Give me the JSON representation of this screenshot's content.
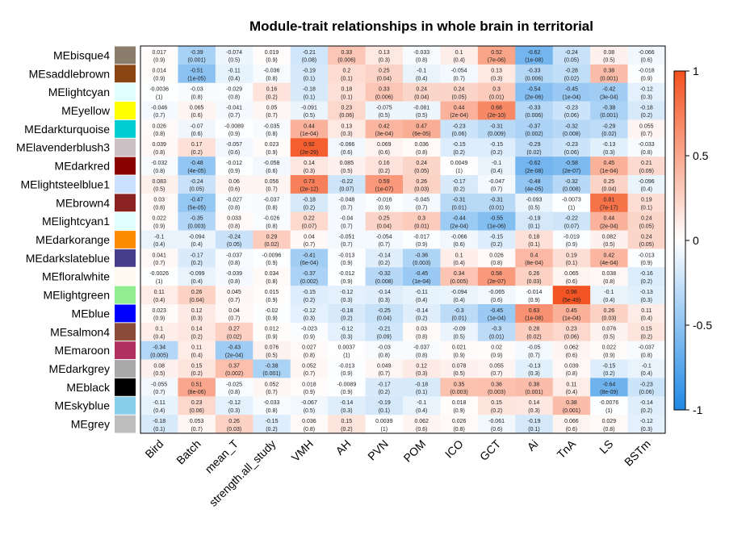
{
  "chart_data": {
    "type": "heatmap",
    "title": "Module-trait relationships in whole brain in territorial",
    "columns": [
      "Bird",
      "Batch",
      "mean_T",
      "strength.all_study",
      "VMH",
      "AH",
      "PVN",
      "POM",
      "ICO",
      "GCT",
      "Ai",
      "TnA",
      "LS",
      "BSTm"
    ],
    "rows": [
      {
        "name": "MEbisque4",
        "color": "#8B7D6B",
        "r": [
          0.017,
          -0.39,
          -0.074,
          0.019,
          -0.21,
          0.33,
          0.13,
          -0.033,
          0.1,
          0.52,
          -0.62,
          -0.24,
          0.08,
          -0.066
        ],
        "p": [
          "(0.9)",
          "(0.001)",
          "(0.5)",
          "(0.9)",
          "(0.08)",
          "(0.006)",
          "(0.3)",
          "(0.8)",
          "(0.4)",
          "(7e-06)",
          "(1e-08)",
          "(0.05)",
          "(0.5)",
          "(0.6)"
        ]
      },
      {
        "name": "MEsaddlebrown",
        "color": "#8B4513",
        "r": [
          0.014,
          -0.51,
          -0.11,
          -0.036,
          -0.19,
          0.2,
          0.25,
          -0.1,
          -0.054,
          0.13,
          -0.33,
          -0.28,
          0.38,
          -0.018
        ],
        "p": [
          "(0.9)",
          "(1e-05)",
          "(0.4)",
          "(0.8)",
          "(0.1)",
          "(0.1)",
          "(0.04)",
          "(0.4)",
          "(0.7)",
          "(0.3)",
          "(0.006)",
          "(0.02)",
          "(0.001)",
          "(0.9)"
        ]
      },
      {
        "name": "MElightcyan",
        "color": "#E0FFFF",
        "r": [
          -0.0036,
          -0.03,
          -0.029,
          0.16,
          -0.18,
          0.18,
          0.33,
          0.24,
          0.24,
          0.3,
          -0.54,
          -0.45,
          -0.42,
          -0.12
        ],
        "p": [
          "(1)",
          "(0.8)",
          "(0.8)",
          "(0.2)",
          "(0.1)",
          "(0.1)",
          "(0.006)",
          "(0.04)",
          "(0.05)",
          "(0.01)",
          "(2e-06)",
          "(1e-04)",
          "(3e-04)",
          "(0.3)"
        ]
      },
      {
        "name": "MEyellow",
        "color": "#FFFF00",
        "r": [
          -0.046,
          0.065,
          -0.041,
          0.05,
          -0.091,
          0.23,
          -0.075,
          -0.081,
          0.44,
          0.68,
          -0.33,
          -0.23,
          -0.38,
          -0.18
        ],
        "p": [
          "(0.7)",
          "(0.6)",
          "(0.7)",
          "(0.7)",
          "(0.5)",
          "(0.06)",
          "(0.5)",
          "(0.5)",
          "(2e-04)",
          "(2e-10)",
          "(0.006)",
          "(0.06)",
          "(0.001)",
          "(0.2)"
        ]
      },
      {
        "name": "MEdarkturquoise",
        "color": "#00CED1",
        "r": [
          0.026,
          -0.07,
          -0.0089,
          -0.035,
          0.44,
          0.13,
          0.42,
          0.47,
          -0.23,
          -0.31,
          -0.37,
          -0.32,
          -0.29,
          0.055
        ],
        "p": [
          "(0.8)",
          "(0.6)",
          "(0.9)",
          "(0.8)",
          "(1e-04)",
          "(0.3)",
          "(3e-04)",
          "(6e-05)",
          "(0.06)",
          "(0.009)",
          "(0.002)",
          "(0.008)",
          "(0.02)",
          "(0.7)"
        ]
      },
      {
        "name": "MElavenderblush3",
        "color": "#CDC1C5",
        "r": [
          0.039,
          0.17,
          -0.057,
          0.023,
          0.92,
          -0.066,
          0.069,
          0.036,
          -0.15,
          -0.15,
          -0.29,
          -0.23,
          -0.13,
          -0.033
        ],
        "p": [
          "(0.8)",
          "(0.2)",
          "(0.6)",
          "(0.9)",
          "(2e-29)",
          "(0.6)",
          "(0.6)",
          "(0.8)",
          "(0.2)",
          "(0.2)",
          "(0.02)",
          "(0.06)",
          "(0.3)",
          "(0.8)"
        ]
      },
      {
        "name": "MEdarkred",
        "color": "#8B0000",
        "r": [
          -0.032,
          -0.48,
          -0.012,
          -0.058,
          0.14,
          0.085,
          0.16,
          0.24,
          0.0049,
          -0.1,
          -0.62,
          -0.58,
          0.45,
          0.21
        ],
        "p": [
          "(0.8)",
          "(4e-05)",
          "(0.9)",
          "(0.6)",
          "(0.3)",
          "(0.5)",
          "(0.2)",
          "(0.05)",
          "(1)",
          "(0.4)",
          "(2e-08)",
          "(2e-07)",
          "(1e-04)",
          "(0.09)"
        ]
      },
      {
        "name": "MElightsteelblue1",
        "color": "#CAE1FF",
        "r": [
          0.083,
          -0.24,
          0.06,
          0.056,
          0.73,
          -0.22,
          0.59,
          0.26,
          -0.17,
          -0.047,
          -0.48,
          -0.32,
          0.25,
          -0.096
        ],
        "p": [
          "(0.5)",
          "(0.05)",
          "(0.6)",
          "(0.7)",
          "(2e-12)",
          "(0.07)",
          "(1e-07)",
          "(0.03)",
          "(0.2)",
          "(0.7)",
          "(4e-05)",
          "(0.008)",
          "(0.04)",
          "(0.4)"
        ]
      },
      {
        "name": "MEbrown4",
        "color": "#8B2323",
        "r": [
          0.03,
          -0.47,
          -0.027,
          -0.037,
          -0.18,
          -0.048,
          -0.016,
          -0.045,
          -0.31,
          -0.31,
          -0.093,
          -0.0073,
          0.81,
          0.19
        ],
        "p": [
          "(0.8)",
          "(5e-05)",
          "(0.8)",
          "(0.8)",
          "(0.2)",
          "(0.7)",
          "(0.9)",
          "(0.7)",
          "(0.01)",
          "(0.01)",
          "(0.5)",
          "(1)",
          "(7e-17)",
          "(0.1)"
        ]
      },
      {
        "name": "MElightcyan1",
        "color": "#E0FFFF",
        "r": [
          0.022,
          -0.35,
          0.033,
          -0.026,
          0.22,
          -0.04,
          0.25,
          0.3,
          -0.44,
          -0.55,
          -0.19,
          -0.22,
          0.44,
          0.24
        ],
        "p": [
          "(0.9)",
          "(0.003)",
          "(0.8)",
          "(0.8)",
          "(0.07)",
          "(0.7)",
          "(0.04)",
          "(0.01)",
          "(2e-04)",
          "(1e-06)",
          "(0.1)",
          "(0.07)",
          "(2e-04)",
          "(0.05)"
        ]
      },
      {
        "name": "MEdarkorange",
        "color": "#FF8C00",
        "r": [
          -0.1,
          -0.094,
          -0.24,
          0.29,
          0.04,
          -0.051,
          -0.054,
          -0.017,
          -0.066,
          -0.15,
          0.18,
          -0.019,
          0.082,
          0.24
        ],
        "p": [
          "(0.4)",
          "(0.4)",
          "(0.05)",
          "(0.02)",
          "(0.7)",
          "(0.7)",
          "(0.7)",
          "(0.9)",
          "(0.6)",
          "(0.2)",
          "(0.1)",
          "(0.9)",
          "(0.5)",
          "(0.05)"
        ]
      },
      {
        "name": "MEdarkslateblue",
        "color": "#483D8B",
        "r": [
          0.041,
          -0.17,
          -0.037,
          -0.0096,
          -0.41,
          -0.013,
          -0.14,
          -0.36,
          0.1,
          0.026,
          0.4,
          0.19,
          0.42,
          -0.013
        ],
        "p": [
          "(0.7)",
          "(0.2)",
          "(0.8)",
          "(0.9)",
          "(6e-04)",
          "(0.9)",
          "(0.2)",
          "(0.003)",
          "(0.4)",
          "(0.8)",
          "(8e-04)",
          "(0.1)",
          "(4e-04)",
          "(0.9)"
        ]
      },
      {
        "name": "MEfloralwhite",
        "color": "#FFFAF0",
        "r": [
          -0.0026,
          -0.099,
          -0.039,
          0.034,
          -0.37,
          -0.012,
          -0.32,
          -0.45,
          0.34,
          0.58,
          0.26,
          0.065,
          0.038,
          -0.16
        ],
        "p": [
          "(1)",
          "(0.4)",
          "(0.8)",
          "(0.8)",
          "(0.002)",
          "(0.9)",
          "(0.008)",
          "(1e-04)",
          "(0.005)",
          "(2e-07)",
          "(0.03)",
          "(0.6)",
          "(0.8)",
          "(0.2)"
        ]
      },
      {
        "name": "MElightgreen",
        "color": "#90EE90",
        "r": [
          0.11,
          0.26,
          0.045,
          0.015,
          -0.15,
          -0.12,
          -0.14,
          -0.11,
          -0.094,
          -0.065,
          -0.014,
          0.98,
          -0.1,
          -0.13
        ],
        "p": [
          "(0.4)",
          "(0.04)",
          "(0.7)",
          "(0.9)",
          "(0.2)",
          "(0.3)",
          "(0.3)",
          "(0.4)",
          "(0.4)",
          "(0.6)",
          "(0.9)",
          "(5e-49)",
          "(0.4)",
          "(0.3)"
        ]
      },
      {
        "name": "MEblue",
        "color": "#0000FF",
        "r": [
          0.023,
          0.12,
          0.04,
          -0.02,
          -0.12,
          -0.18,
          -0.25,
          -0.14,
          -0.3,
          -0.45,
          0.63,
          0.45,
          0.26,
          0.11
        ],
        "p": [
          "(0.9)",
          "(0.3)",
          "(0.7)",
          "(0.9)",
          "(0.3)",
          "(0.2)",
          "(0.04)",
          "(0.2)",
          "(0.01)",
          "(1e-04)",
          "(1e-08)",
          "(1e-04)",
          "(0.03)",
          "(0.4)"
        ]
      },
      {
        "name": "MEsalmon4",
        "color": "#8B4C39",
        "r": [
          0.1,
          0.14,
          0.27,
          0.012,
          -0.023,
          -0.12,
          -0.21,
          0.03,
          -0.09,
          -0.3,
          0.28,
          0.23,
          0.076,
          0.15
        ],
        "p": [
          "(0.4)",
          "(0.2)",
          "(0.02)",
          "(0.9)",
          "(0.9)",
          "(0.3)",
          "(0.09)",
          "(0.8)",
          "(0.5)",
          "(0.01)",
          "(0.02)",
          "(0.06)",
          "(0.5)",
          "(0.2)"
        ]
      },
      {
        "name": "MEmaroon",
        "color": "#B03060",
        "r": [
          -0.34,
          0.11,
          -0.43,
          0.076,
          0.027,
          0.0037,
          -0.03,
          -0.037,
          0.021,
          0.02,
          -0.05,
          0.062,
          0.022,
          -0.037
        ],
        "p": [
          "(0.005)",
          "(0.4)",
          "(2e-04)",
          "(0.5)",
          "(0.8)",
          "(1)",
          "(0.8)",
          "(0.8)",
          "(0.9)",
          "(0.9)",
          "(0.7)",
          "(0.6)",
          "(0.9)",
          "(0.8)"
        ]
      },
      {
        "name": "MEdarkgrey",
        "color": "#A9A9A9",
        "r": [
          0.08,
          0.15,
          0.37,
          -0.38,
          0.052,
          -0.013,
          0.049,
          0.12,
          0.078,
          0.055,
          -0.13,
          0.039,
          -0.15,
          -0.1
        ],
        "p": [
          "(0.5)",
          "(0.2)",
          "(0.002)",
          "(0.001)",
          "(0.7)",
          "(0.9)",
          "(0.7)",
          "(0.3)",
          "(0.5)",
          "(0.7)",
          "(0.3)",
          "(0.8)",
          "(0.2)",
          "(0.4)"
        ]
      },
      {
        "name": "MEblack",
        "color": "#000000",
        "r": [
          -0.055,
          0.51,
          -0.025,
          0.052,
          0.018,
          -0.0089,
          -0.17,
          -0.18,
          0.35,
          0.36,
          0.38,
          0.11,
          -0.64,
          -0.23
        ],
        "p": [
          "(0.7)",
          "(8e-06)",
          "(0.8)",
          "(0.7)",
          "(0.9)",
          "(0.9)",
          "(0.2)",
          "(0.1)",
          "(0.003)",
          "(0.003)",
          "(0.001)",
          "(0.4)",
          "(8e-09)",
          "(0.06)"
        ]
      },
      {
        "name": "MEskyblue",
        "color": "#87CEEB",
        "r": [
          -0.11,
          0.23,
          -0.12,
          -0.033,
          -0.067,
          -0.14,
          -0.19,
          -0.1,
          0.018,
          0.15,
          0.14,
          0.38,
          -0.0076,
          -0.14
        ],
        "p": [
          "(0.4)",
          "(0.06)",
          "(0.3)",
          "(0.8)",
          "(0.5)",
          "(0.3)",
          "(0.1)",
          "(0.4)",
          "(0.9)",
          "(0.2)",
          "(0.3)",
          "(0.001)",
          "(1)",
          "(0.2)"
        ]
      },
      {
        "name": "MEgrey",
        "color": "#BEBEBE",
        "r": [
          -0.18,
          0.053,
          0.26,
          -0.15,
          0.036,
          0.15,
          0.0039,
          0.062,
          0.026,
          -0.061,
          -0.19,
          0.066,
          0.029,
          -0.12
        ],
        "p": [
          "(0.1)",
          "(0.7)",
          "(0.03)",
          "(0.2)",
          "(0.8)",
          "(0.2)",
          "(1)",
          "(0.6)",
          "(0.8)",
          "(0.6)",
          "(0.1)",
          "(0.6)",
          "(0.8)",
          "(0.3)"
        ]
      }
    ],
    "color_scale": {
      "min": -1,
      "max": 1,
      "low_color": "#1E88E5",
      "mid_color": "#FFFFFF",
      "high_color": "#F4511E"
    },
    "legend": {
      "position": "right",
      "ticks": [
        "1",
        "0.5",
        "0",
        "-0.5",
        "-1"
      ],
      "tick_values": [
        1,
        0.5,
        0,
        -0.5,
        -1
      ]
    }
  }
}
